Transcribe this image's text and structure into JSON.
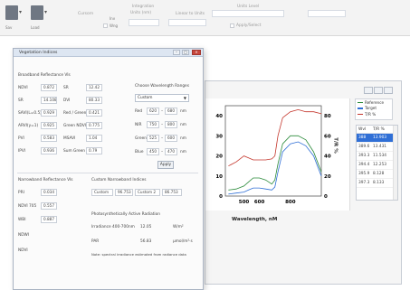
{
  "ribbon": {
    "btn1_label": "Sav",
    "btn2_label": "Load",
    "field1_label": "Cursorn",
    "caption1": "Inv",
    "caption2": "Wng",
    "section2_label": "Integration",
    "section2_sub": "Units (nm)",
    "field3_label": "Linear to Units",
    "section3_label": "Units Level",
    "field5_label": "Load Connect",
    "option_label": "Apply/Select"
  },
  "dialog": {
    "title": "Vegetation Indices",
    "broadband_header": "Broadband Reflectance VIs",
    "indices": [
      {
        "name": "NDVI",
        "value": "0.872",
        "name2": "SR",
        "value2": "12.42"
      },
      {
        "name": "SR",
        "value": "14.108",
        "name2": "DVI",
        "value2": "80.33"
      },
      {
        "name": "SAVI(L=0.5)",
        "value": "0.929",
        "name2": "Red / Green",
        "value2": "0.421"
      },
      {
        "name": "ARVI(y=1)",
        "value": "0.925",
        "name2": "Green NDVI",
        "value2": "0.775"
      },
      {
        "name": "PVI",
        "value": "0.583",
        "name2": "MSAVI",
        "value2": "1.04"
      },
      {
        "name": "IPVI",
        "value": "0.936",
        "name2": "Sum Green",
        "value2": "0.79"
      }
    ],
    "wavelength_ranges_label": "Choose Wavelength Ranges",
    "sensor_select": "Custom",
    "bands": [
      {
        "name": "Red",
        "from": "620",
        "to": "680",
        "unit": "nm"
      },
      {
        "name": "NIR",
        "from": "750",
        "to": "800",
        "unit": "nm"
      },
      {
        "name": "Green",
        "from": "525",
        "to": "600",
        "unit": "nm"
      },
      {
        "name": "Blue",
        "from": "450",
        "to": "470",
        "unit": "nm"
      }
    ],
    "apply_label": "Apply",
    "narrowband_header": "Narrowband Reflectance VIs",
    "custom_header": "Custom Narrowband Indices",
    "narrow_indices": [
      {
        "name": "PRI",
        "value": "0.034"
      },
      {
        "name": "NDVI 705",
        "value": "0.557"
      },
      {
        "name": "WBI",
        "value": "0.887"
      },
      {
        "name": "NDWI",
        "value": ""
      },
      {
        "name": "NDVI",
        "value": ""
      }
    ],
    "custom_cells": [
      "Custom",
      "96.753",
      "Custom 2",
      "86.753"
    ],
    "par_header": "Photosynthetically Active Radiation",
    "par_rows": [
      {
        "label": "Irradiance 400-700nm",
        "value": "12.05",
        "unit": "W/m²"
      },
      {
        "label": "PAR",
        "value": "56.83",
        "unit": "µmol/m²·s"
      }
    ],
    "note": "Note: spectral irradiance estimated from radiance data"
  },
  "results": {
    "legend": [
      {
        "label": "Reference",
        "color": "#2a8a3a"
      },
      {
        "label": "Target",
        "color": "#2f6fd6"
      },
      {
        "label": "T/R %",
        "color": "#c4352b"
      }
    ],
    "list_header": [
      "Wvl",
      "T/R %"
    ],
    "list_rows": [
      {
        "wvl": "388",
        "val": "13.903",
        "selected": true
      },
      {
        "wvl": "389.6",
        "val": "13.431",
        "selected": false
      },
      {
        "wvl": "393.3",
        "val": "11.534",
        "selected": false
      },
      {
        "wvl": "394.4",
        "val": "12.253",
        "selected": false
      },
      {
        "wvl": "395.9",
        "val": "8.128",
        "selected": false
      },
      {
        "wvl": "397.3",
        "val": "8.133",
        "selected": false
      }
    ]
  },
  "chart_data": {
    "type": "line",
    "xlabel": "Wavelength, nM",
    "ylabel_right": "T/R %",
    "x_ticks": [
      "500",
      "600",
      "800"
    ],
    "y_left_ticks": [
      "40",
      "30",
      "20",
      "10",
      "0"
    ],
    "y_right_ticks": [
      "80",
      "60",
      "40",
      "20",
      "0"
    ],
    "xlim": [
      380,
      1000
    ],
    "ylim_left": [
      0,
      45
    ],
    "ylim_right": [
      0,
      90
    ],
    "series": [
      {
        "name": "Reference",
        "color": "#2a8a3a",
        "x": [
          400,
          450,
          500,
          530,
          560,
          600,
          640,
          680,
          700,
          720,
          750,
          800,
          850,
          900,
          950,
          1000
        ],
        "y": [
          3,
          3.5,
          5,
          7,
          9,
          9,
          8,
          6,
          8,
          16,
          26,
          30,
          30,
          28,
          22,
          12
        ]
      },
      {
        "name": "Target",
        "color": "#2f6fd6",
        "x": [
          400,
          450,
          500,
          530,
          560,
          600,
          640,
          680,
          700,
          720,
          750,
          800,
          850,
          900,
          950,
          1000
        ],
        "y": [
          1,
          1.5,
          2,
          3,
          4,
          4,
          3.5,
          3,
          4.5,
          12,
          22,
          26,
          27,
          25,
          20,
          10
        ]
      },
      {
        "name": "T/R %",
        "color": "#c4352b",
        "x": [
          400,
          450,
          500,
          530,
          560,
          600,
          640,
          680,
          700,
          720,
          750,
          800,
          850,
          900,
          950,
          1000
        ],
        "y": [
          30,
          34,
          40,
          38,
          36,
          36,
          36,
          37,
          40,
          60,
          78,
          84,
          86,
          84,
          84,
          82
        ]
      }
    ]
  }
}
